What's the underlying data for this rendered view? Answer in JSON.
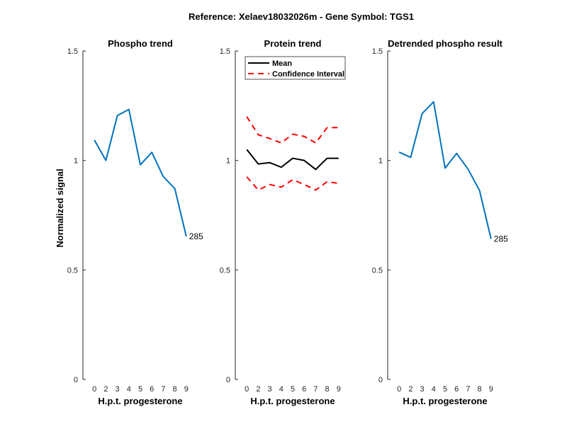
{
  "chart_data": {
    "title": "Reference:  Xelaev18032026m - Gene Symbol:  TGS1",
    "panels": [
      {
        "type": "line",
        "title": "Phospho trend",
        "xlabel": "H.p.t. progesterone",
        "ylabel": "Normalized signal",
        "categories": [
          "0",
          "2",
          "3",
          "4",
          "5",
          "6",
          "7",
          "8",
          "9"
        ],
        "ylim": [
          0,
          1.5
        ],
        "yticks": [
          "0",
          "0.5",
          "1",
          "1.5"
        ],
        "series": [
          {
            "values": [
              1.093,
              1.0,
              1.205,
              1.233,
              0.98,
              1.037,
              0.926,
              0.872,
              0.653
            ],
            "color": "#0072BD",
            "style": "solid"
          }
        ],
        "annotation": "285"
      },
      {
        "type": "line",
        "title": "Protein trend",
        "xlabel": "H.p.t. progesterone",
        "categories": [
          "0",
          "2",
          "3",
          "4",
          "5",
          "6",
          "7",
          "8",
          "9"
        ],
        "ylim": [
          0,
          1.5
        ],
        "yticks": [
          "0",
          "0.5",
          "1",
          "1.5"
        ],
        "legend": "top-left",
        "series": [
          {
            "name": "Mean",
            "values": [
              1.05,
              0.984,
              0.99,
              0.969,
              1.01,
              1.0,
              0.959,
              1.01,
              1.01
            ],
            "color": "#000000",
            "style": "solid"
          },
          {
            "name": "Confidence Interval",
            "values": [
              1.2,
              1.117,
              1.1,
              1.08,
              1.12,
              1.11,
              1.08,
              1.15,
              1.15
            ],
            "color": "#FF0000",
            "style": "dashed"
          },
          {
            "values": [
              0.925,
              0.865,
              0.89,
              0.878,
              0.912,
              0.89,
              0.865,
              0.903,
              0.895
            ],
            "color": "#FF0000",
            "style": "dashed"
          }
        ]
      },
      {
        "type": "line",
        "title": "Detrended phospho result",
        "xlabel": "H.p.t. progesterone",
        "categories": [
          "0",
          "2",
          "3",
          "4",
          "5",
          "6",
          "7",
          "8",
          "9"
        ],
        "ylim": [
          0,
          1.5
        ],
        "yticks": [
          "0",
          "0.5",
          "1",
          "1.5"
        ],
        "series": [
          {
            "values": [
              1.038,
              1.014,
              1.214,
              1.268,
              0.965,
              1.032,
              0.96,
              0.863,
              0.642
            ],
            "color": "#0072BD",
            "style": "solid"
          }
        ],
        "annotation": "285"
      }
    ]
  }
}
